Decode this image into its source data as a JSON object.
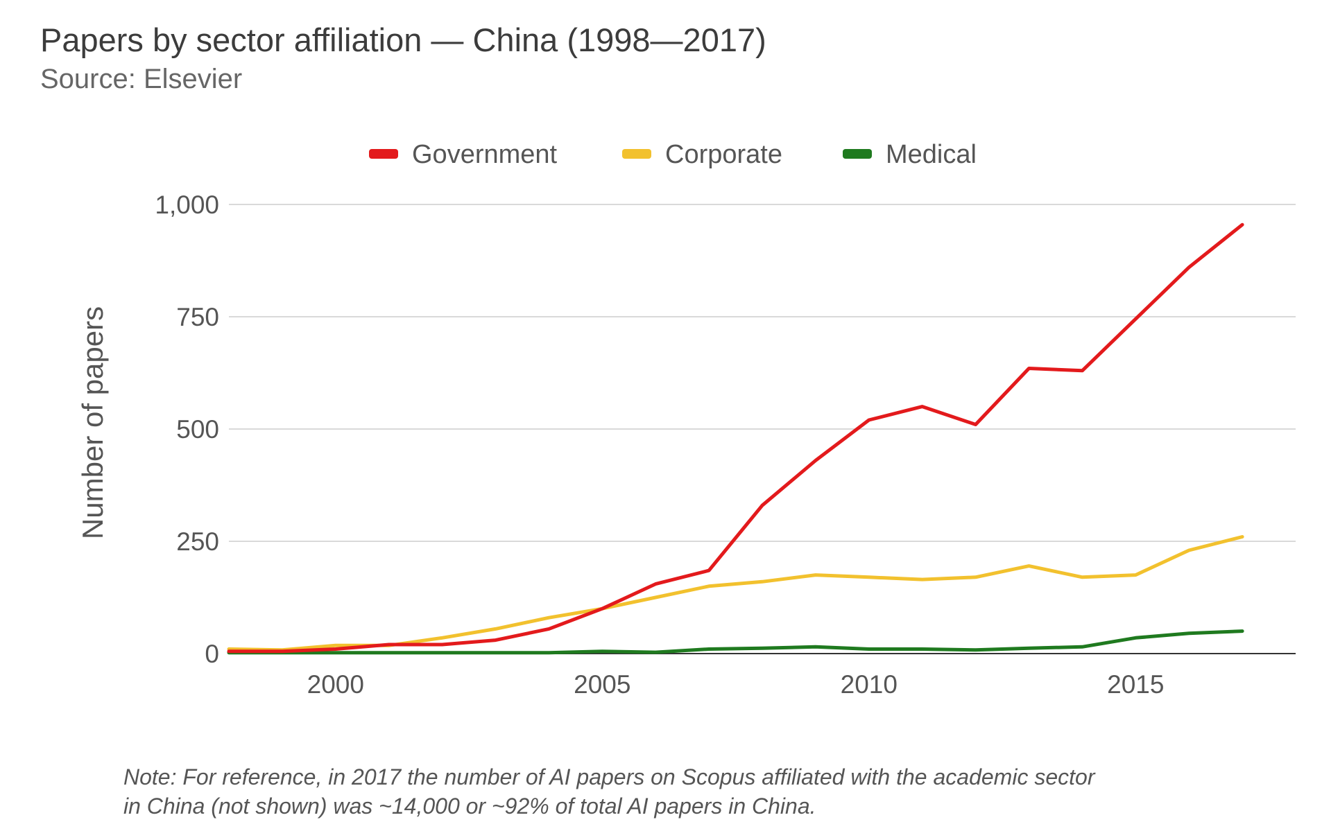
{
  "header": {
    "title": "Papers by sector affiliation — China (1998—2017)",
    "subtitle": "Source: Elsevier"
  },
  "note": {
    "line1": "Note: For reference, in 2017 the number of AI papers on Scopus affiliated with the academic sector",
    "line2": "in China (not shown) was ~14,000 or ~92% of total AI papers in China."
  },
  "chart_data": {
    "type": "line",
    "title": "Papers by sector affiliation — China (1998—2017)",
    "subtitle": "Source: Elsevier",
    "xlabel": "",
    "ylabel": "Number of papers",
    "xlim": [
      1998,
      2018
    ],
    "ylim": [
      0,
      1000
    ],
    "x_ticks": [
      2000,
      2005,
      2010,
      2015
    ],
    "x_tick_labels": [
      "2000",
      "2005",
      "2010",
      "2015"
    ],
    "y_ticks": [
      0,
      250,
      500,
      750,
      1000
    ],
    "y_tick_labels": [
      "0",
      "250",
      "500",
      "750",
      "1,000"
    ],
    "grid": true,
    "legend_position": "top-center",
    "x": [
      1998,
      1999,
      2000,
      2001,
      2002,
      2003,
      2004,
      2005,
      2006,
      2007,
      2008,
      2009,
      2010,
      2011,
      2012,
      2013,
      2014,
      2015,
      2016,
      2017
    ],
    "series": [
      {
        "name": "Government",
        "color": "#e31a1c",
        "values": [
          5,
          5,
          10,
          20,
          20,
          30,
          55,
          100,
          155,
          185,
          330,
          430,
          520,
          550,
          510,
          635,
          630,
          745,
          860,
          955
        ]
      },
      {
        "name": "Corporate",
        "color": "#f2c12e",
        "values": [
          10,
          8,
          18,
          18,
          35,
          55,
          80,
          100,
          125,
          150,
          160,
          175,
          170,
          165,
          170,
          195,
          170,
          175,
          230,
          260
        ]
      },
      {
        "name": "Medical",
        "color": "#1f7a1f",
        "values": [
          2,
          2,
          2,
          2,
          2,
          2,
          2,
          5,
          3,
          10,
          12,
          15,
          10,
          10,
          8,
          12,
          15,
          35,
          45,
          50
        ]
      }
    ]
  }
}
